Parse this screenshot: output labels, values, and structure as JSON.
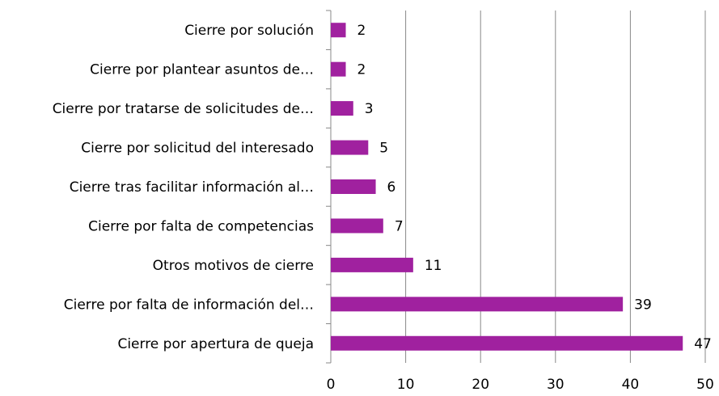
{
  "chart_data": {
    "type": "barh",
    "categories": [
      "Cierre por solución",
      "Cierre por plantear asuntos de…",
      "Cierre por tratarse de solicitudes de…",
      "Cierre por solicitud del interesado",
      "Cierre tras facilitar información al…",
      "Cierre por falta de competencias",
      "Otros motivos de cierre",
      "Cierre por falta de información del…",
      "Cierre por apertura de queja"
    ],
    "values": [
      2,
      2,
      3,
      5,
      6,
      7,
      11,
      39,
      47
    ],
    "color": "#a0219f",
    "xlim": [
      0,
      50
    ],
    "xticks": [
      0,
      10,
      20,
      30,
      40,
      50
    ],
    "grid": true
  }
}
